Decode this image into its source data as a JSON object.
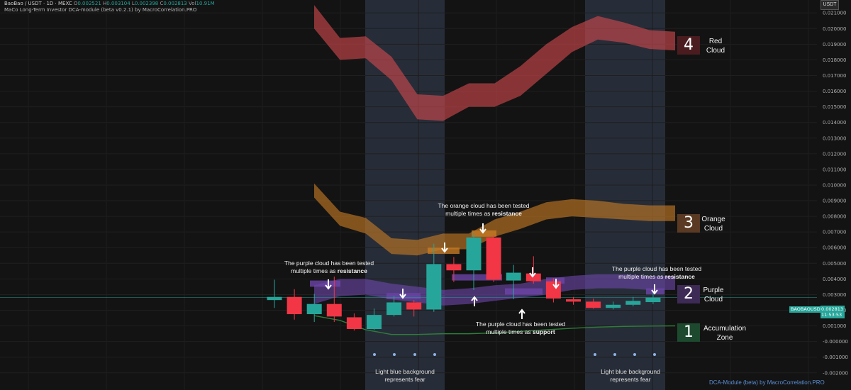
{
  "header": {
    "symbol_line": "BaoBao / USDT · 1D · MEXC",
    "open_label": "O",
    "open_value": "0.002521",
    "high_label": "H",
    "high_value": "0.003104",
    "low_label": "L",
    "low_value": "0.002398",
    "close_label": "C",
    "close_value": "0.002813",
    "vol_label": "Vol",
    "vol_value": "10.91M",
    "indicator_line": "MaCo Long-Term Investor DCA-module (beta v0.2.1) by MacroCorrelation.PRO"
  },
  "axis": {
    "currency": "USDT"
  },
  "last_price": {
    "symbol_tag": "BAOBAOUSDT",
    "price": "0.002813",
    "countdown": "11:53:53"
  },
  "footer": "DCA-Module (beta) by MacroCorrelation.PRO",
  "zones": [
    {
      "number": "4",
      "label_line1": "Red",
      "label_line2": "Cloud",
      "color": "#4a1c1f"
    },
    {
      "number": "3",
      "label_line1": "Orange",
      "label_line2": "Cloud",
      "color": "#5a3a22"
    },
    {
      "number": "2",
      "label_line1": "Purple",
      "label_line2": "Cloud",
      "color": "#3d2a55"
    },
    {
      "number": "1",
      "label_line1": "Accumulation",
      "label_line2": "Zone",
      "color": "#1d4a2e"
    }
  ],
  "annotations": {
    "purple_resistance_left": {
      "line1": "The purple cloud has been tested",
      "line2_pre": "multiple times as ",
      "line2_bold": "resistance"
    },
    "orange_resistance": {
      "line1": "The orange cloud has been tested",
      "line2_pre": "multiple times as ",
      "line2_bold": "resistance"
    },
    "purple_support": {
      "line1": "The purple cloud has been tested",
      "line2_pre": "multiple times as ",
      "line2_bold": "support"
    },
    "purple_resistance_right": {
      "line1": "The purple cloud has been tested",
      "line2_pre": "multiple times as ",
      "line2_bold": "resistance"
    },
    "fear_left": {
      "line1": "Light blue background",
      "line2": "represents fear"
    },
    "fear_right": {
      "line1": "Light blue background",
      "line2": "represents fear"
    }
  },
  "chart_data": {
    "type": "candlestick",
    "ylim": [
      -0.0021,
      0.0211
    ],
    "y_ticks": [
      "0.021000",
      "0.020000",
      "0.019000",
      "0.018000",
      "0.017000",
      "0.016000",
      "0.015000",
      "0.014000",
      "0.013000",
      "0.012000",
      "0.011000",
      "0.010000",
      "0.009000",
      "0.008000",
      "0.007000",
      "0.006000",
      "0.005000",
      "0.004000",
      "0.003000",
      "0.002000",
      "0.001000",
      "-0.000000",
      "-0.001000",
      "-0.002000"
    ],
    "colors": {
      "up": "#26a69a",
      "down": "#f23645",
      "red_cloud": "#d0484d",
      "orange_cloud": "#c77a24",
      "purple_cloud": "#6c45a8",
      "accumulation_line": "#2f7d3a",
      "fear_bg": "#2b3340",
      "price_line": "#26a69a"
    },
    "candles": [
      {
        "o": 0.00265,
        "h": 0.00395,
        "l": 0.00215,
        "c": 0.00285
      },
      {
        "o": 0.00285,
        "h": 0.00335,
        "l": 0.0014,
        "c": 0.00175
      },
      {
        "o": 0.00175,
        "h": 0.00305,
        "l": 0.00125,
        "c": 0.0024
      },
      {
        "o": 0.0024,
        "h": 0.00415,
        "l": 0.00125,
        "c": 0.0016
      },
      {
        "o": 0.00155,
        "h": 0.0018,
        "l": 0.0007,
        "c": 0.0008
      },
      {
        "o": 0.0008,
        "h": 0.0021,
        "l": 0.00075,
        "c": 0.0017
      },
      {
        "o": 0.0017,
        "h": 0.0029,
        "l": 0.0016,
        "c": 0.0025
      },
      {
        "o": 0.0025,
        "h": 0.00265,
        "l": 0.0016,
        "c": 0.00205
      },
      {
        "o": 0.00205,
        "h": 0.00625,
        "l": 0.0019,
        "c": 0.00495
      },
      {
        "o": 0.00495,
        "h": 0.0054,
        "l": 0.0038,
        "c": 0.00455
      },
      {
        "o": 0.00455,
        "h": 0.00695,
        "l": 0.0033,
        "c": 0.00665
      },
      {
        "o": 0.00665,
        "h": 0.0068,
        "l": 0.0038,
        "c": 0.00395
      },
      {
        "o": 0.0039,
        "h": 0.0049,
        "l": 0.0027,
        "c": 0.0044
      },
      {
        "o": 0.00435,
        "h": 0.00545,
        "l": 0.0037,
        "c": 0.00385
      },
      {
        "o": 0.00385,
        "h": 0.00405,
        "l": 0.0025,
        "c": 0.00275
      },
      {
        "o": 0.0027,
        "h": 0.00285,
        "l": 0.00235,
        "c": 0.00255
      },
      {
        "o": 0.00255,
        "h": 0.00275,
        "l": 0.0021,
        "c": 0.00215
      },
      {
        "o": 0.00215,
        "h": 0.00255,
        "l": 0.00205,
        "c": 0.00235
      },
      {
        "o": 0.00235,
        "h": 0.00285,
        "l": 0.00225,
        "c": 0.0026
      },
      {
        "o": 0.00252,
        "h": 0.0031,
        "l": 0.0024,
        "c": 0.00281
      }
    ],
    "red_cloud": {
      "top": [
        0.0215,
        0.0194,
        0.0195,
        0.0182,
        0.0158,
        0.0157,
        0.0165,
        0.0165,
        0.0176,
        0.019,
        0.0201,
        0.0208,
        0.0204,
        0.0199,
        0.0198
      ],
      "bottom": [
        0.02,
        0.018,
        0.0181,
        0.0167,
        0.0142,
        0.0141,
        0.015,
        0.015,
        0.0157,
        0.0171,
        0.0185,
        0.0193,
        0.0191,
        0.0187,
        0.0186
      ]
    },
    "orange_cloud": {
      "top": [
        0.0101,
        0.0083,
        0.0079,
        0.0066,
        0.0065,
        0.0069,
        0.0069,
        0.0078,
        0.0083,
        0.0089,
        0.0091,
        0.009,
        0.0088,
        0.0087,
        0.0087
      ],
      "bottom": [
        0.0092,
        0.0074,
        0.0069,
        0.0056,
        0.0055,
        0.0059,
        0.0059,
        0.0067,
        0.0072,
        0.0078,
        0.008,
        0.0079,
        0.0078,
        0.0077,
        0.0077
      ]
    },
    "purple_cloud": {
      "top": [
        0.0036,
        0.004,
        0.004,
        0.0037,
        0.0035,
        0.0033,
        0.0034,
        0.0036,
        0.0037,
        0.004,
        0.0042,
        0.0043,
        0.0043,
        0.0042,
        0.0042
      ],
      "bottom": [
        0.0024,
        0.0029,
        0.003,
        0.0027,
        0.0025,
        0.0023,
        0.0024,
        0.0026,
        0.0028,
        0.003,
        0.0033,
        0.0034,
        0.0034,
        0.0033,
        0.0033
      ]
    },
    "accumulation_line": [
      0.00165,
      0.00135,
      0.00075,
      0.00045,
      0.00045,
      0.0005,
      0.0005,
      0.00055,
      0.00065,
      0.00075,
      0.00085,
      0.00092,
      0.00097,
      0.00099,
      0.001
    ],
    "last_price": 0.002813
  }
}
